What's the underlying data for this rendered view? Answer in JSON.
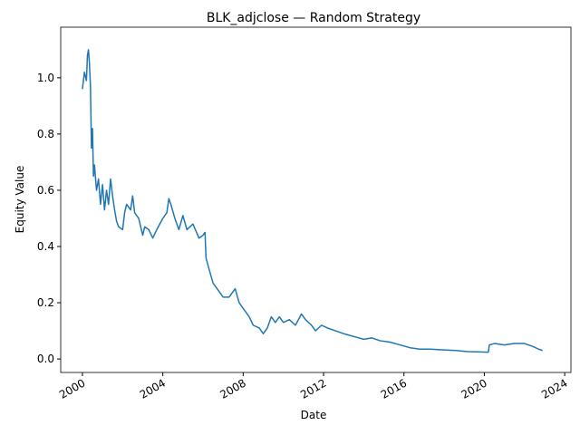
{
  "chart_data": {
    "type": "line",
    "title": "BLK_adjclose — Random Strategy",
    "x_label": "Date",
    "y_label": "Equity Value",
    "x": [
      2000.0,
      2000.1,
      2000.2,
      2000.25,
      2000.3,
      2000.35,
      2000.4,
      2000.45,
      2000.5,
      2000.55,
      2000.6,
      2000.7,
      2000.8,
      2000.9,
      2001.0,
      2001.1,
      2001.2,
      2001.3,
      2001.4,
      2001.5,
      2001.6,
      2001.7,
      2001.8,
      2002.0,
      2002.1,
      2002.2,
      2002.4,
      2002.5,
      2002.6,
      2002.8,
      2003.0,
      2003.1,
      2003.3,
      2003.5,
      2003.7,
      2004.0,
      2004.2,
      2004.3,
      2004.4,
      2004.6,
      2004.8,
      2005.0,
      2005.2,
      2005.5,
      2005.8,
      2006.0,
      2006.1,
      2006.15,
      2006.3,
      2006.5,
      2006.7,
      2007.0,
      2007.3,
      2007.6,
      2007.8,
      2008.0,
      2008.3,
      2008.5,
      2008.8,
      2009.0,
      2009.2,
      2009.4,
      2009.6,
      2009.8,
      2010.0,
      2010.3,
      2010.6,
      2010.9,
      2011.1,
      2011.4,
      2011.6,
      2011.9,
      2012.2,
      2012.6,
      2013.0,
      2013.5,
      2014.0,
      2014.4,
      2014.8,
      2015.3,
      2015.8,
      2016.3,
      2016.8,
      2017.3,
      2018.0,
      2018.6,
      2019.2,
      2019.8,
      2020.2,
      2020.25,
      2020.5,
      2021.0,
      2021.5,
      2022.0,
      2022.4,
      2022.7,
      2022.9
    ],
    "series": [
      {
        "color": "#1f77b4",
        "values": [
          0.96,
          1.02,
          0.99,
          1.08,
          1.1,
          1.05,
          0.97,
          0.75,
          0.82,
          0.65,
          0.69,
          0.6,
          0.64,
          0.55,
          0.62,
          0.53,
          0.6,
          0.55,
          0.64,
          0.58,
          0.53,
          0.49,
          0.47,
          0.46,
          0.52,
          0.55,
          0.53,
          0.58,
          0.52,
          0.5,
          0.44,
          0.47,
          0.46,
          0.43,
          0.46,
          0.5,
          0.52,
          0.57,
          0.55,
          0.5,
          0.46,
          0.51,
          0.46,
          0.48,
          0.43,
          0.44,
          0.45,
          0.36,
          0.32,
          0.27,
          0.25,
          0.22,
          0.22,
          0.25,
          0.2,
          0.18,
          0.15,
          0.12,
          0.11,
          0.09,
          0.11,
          0.15,
          0.13,
          0.15,
          0.13,
          0.14,
          0.12,
          0.16,
          0.14,
          0.12,
          0.1,
          0.12,
          0.11,
          0.1,
          0.09,
          0.08,
          0.07,
          0.075,
          0.065,
          0.06,
          0.05,
          0.04,
          0.035,
          0.035,
          0.032,
          0.03,
          0.026,
          0.025,
          0.024,
          0.05,
          0.055,
          0.05,
          0.055,
          0.055,
          0.045,
          0.035,
          0.03
        ]
      }
    ],
    "xlim": [
      1998.92,
      2024.31
    ],
    "xticks": [
      2000,
      2004,
      2008,
      2012,
      2016,
      2020,
      2024
    ],
    "ylim": [
      -0.048,
      1.18
    ],
    "yticks": [
      {
        "value": 0,
        "label": "0.0"
      },
      0.2,
      0.4,
      0.6,
      0.8,
      {
        "value": 1,
        "label": "1.0"
      }
    ]
  }
}
